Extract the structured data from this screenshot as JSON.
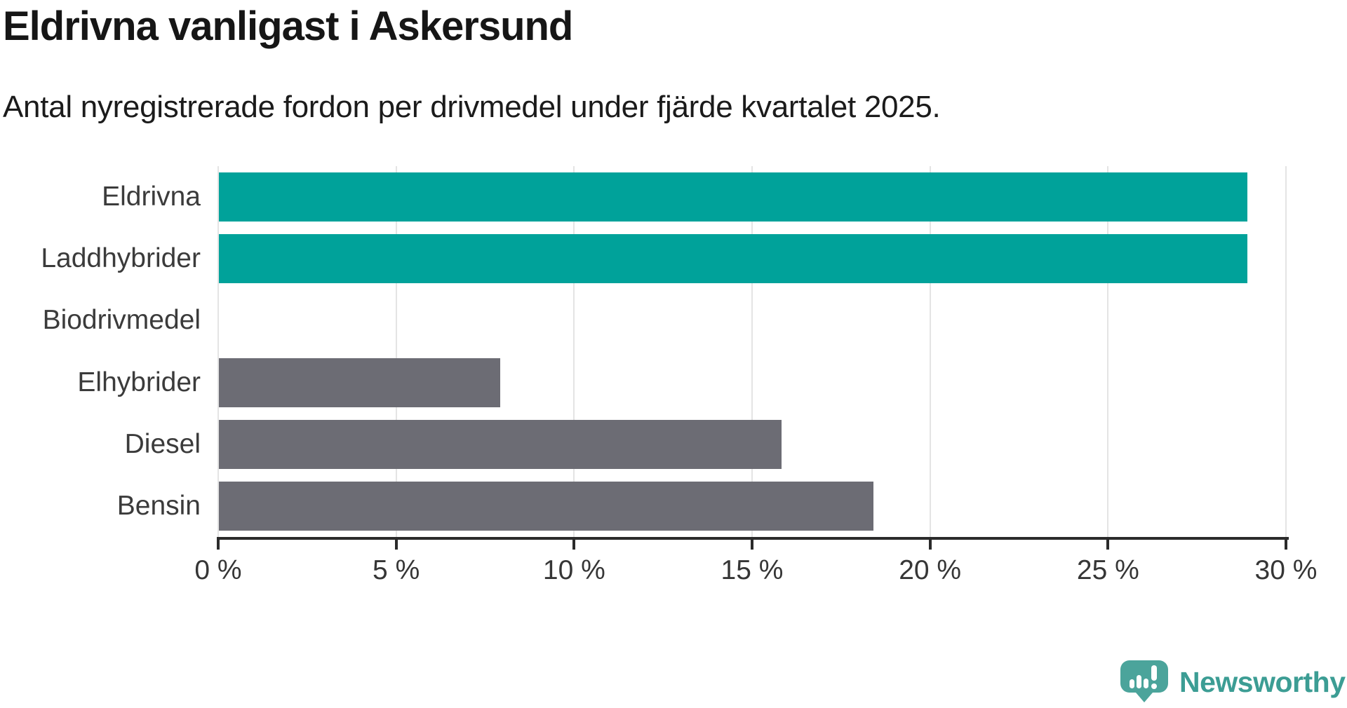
{
  "header": {
    "title": "Eldrivna vanligast i Askersund",
    "subtitle": "Antal nyregistrerade fordon per drivmedel under fjärde kvartalet 2025."
  },
  "chart_data": {
    "type": "bar",
    "orientation": "horizontal",
    "title": "Eldrivna vanligast i Askersund",
    "subtitle": "Antal nyregistrerade fordon per drivmedel under fjärde kvartalet 2025.",
    "categories": [
      "Eldrivna",
      "Laddhybrider",
      "Biodrivmedel",
      "Elhybrider",
      "Diesel",
      "Bensin"
    ],
    "values": [
      28.9,
      28.9,
      0,
      7.9,
      15.8,
      18.4
    ],
    "unit": "%",
    "bar_colors": [
      "#00a29a",
      "#00a29a",
      "#6c6c74",
      "#6c6c74",
      "#6c6c74",
      "#6c6c74"
    ],
    "highlight_color": "#00a29a",
    "default_color": "#6c6c74",
    "xlim": [
      0,
      30
    ],
    "x_tick_values": [
      0,
      5,
      10,
      15,
      20,
      25,
      30
    ],
    "x_tick_labels": [
      "0 %",
      "5 %",
      "10 %",
      "15 %",
      "20 %",
      "25 %",
      "30 %"
    ],
    "grid": true,
    "gridline_color": "#e4e4e4",
    "axis_color": "#2b2b2b",
    "legend": "none"
  },
  "logo": {
    "text": "Newsworthy",
    "text_color": "#3c9d94",
    "bubble_color": "#4ba49b"
  }
}
